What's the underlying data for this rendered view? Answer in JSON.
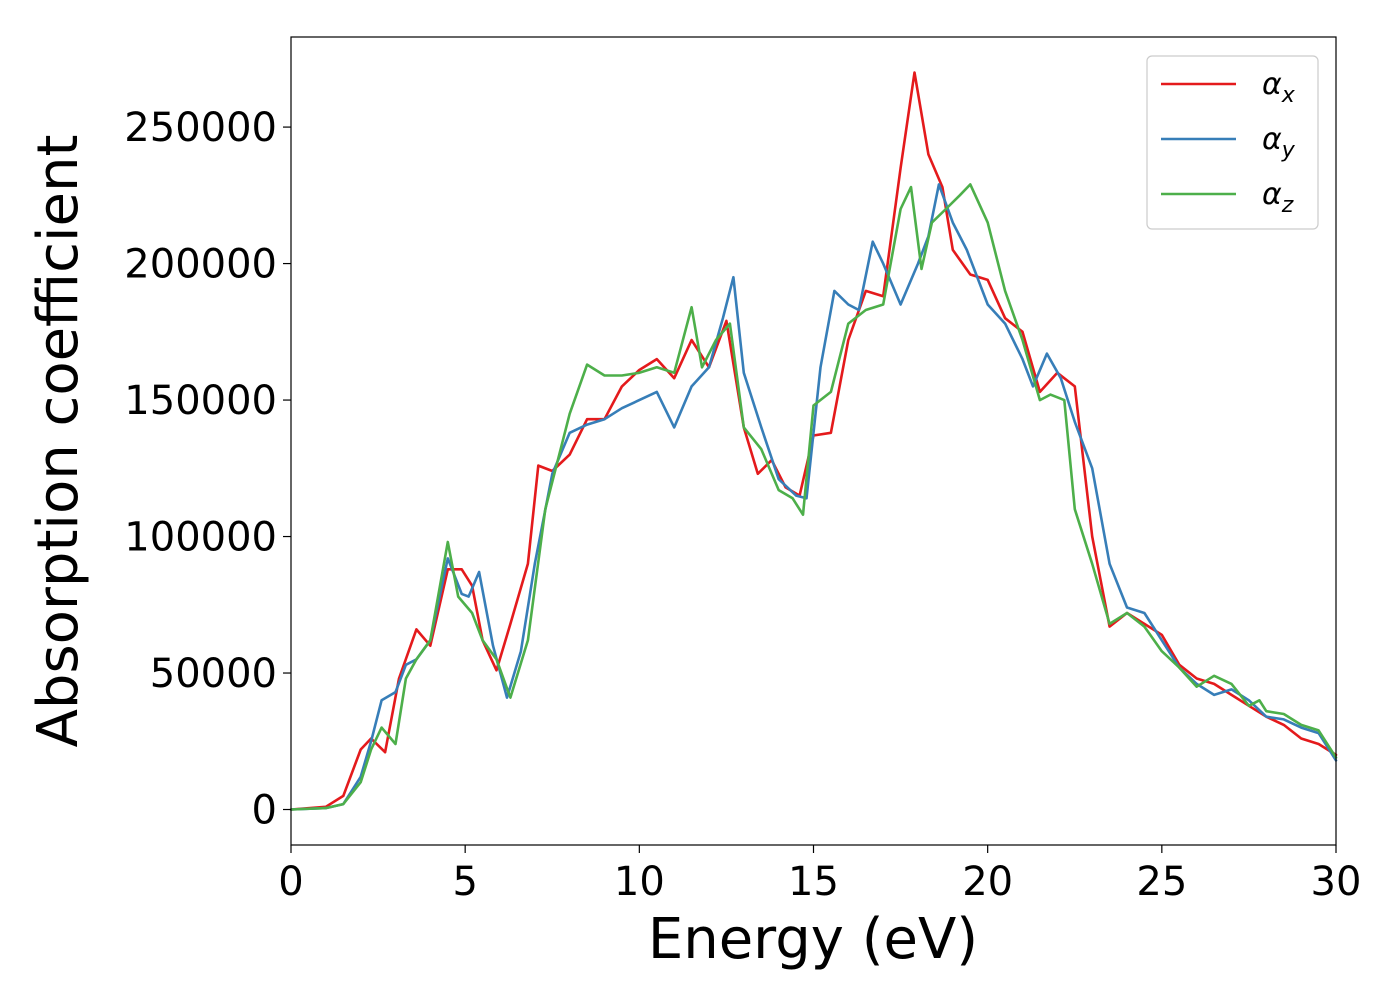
{
  "chart_data": {
    "type": "line",
    "xlabel": "Energy (eV)",
    "ylabel": "Absorption coefficient",
    "xlim": [
      0,
      30
    ],
    "ylim": [
      -13000,
      283000
    ],
    "xticks": [
      0,
      5,
      10,
      15,
      20,
      25,
      30
    ],
    "yticks": [
      0,
      50000,
      100000,
      150000,
      200000,
      250000
    ],
    "grid": false,
    "legend_position": "top-right",
    "series": [
      {
        "name": "α",
        "subscript": "x",
        "color": "#e41a1c",
        "x": [
          0,
          1,
          1.5,
          2,
          2.3,
          2.7,
          3.1,
          3.6,
          4,
          4.5,
          4.9,
          5.2,
          5.5,
          5.9,
          6.3,
          6.8,
          7.1,
          7.5,
          8,
          8.5,
          9,
          9.5,
          10,
          10.5,
          11,
          11.5,
          12,
          12.5,
          13,
          13.4,
          13.8,
          14.2,
          14.6,
          15,
          15.5,
          16,
          16.5,
          17,
          17.5,
          17.9,
          18.3,
          18.7,
          19,
          19.5,
          20,
          20.5,
          21,
          21.5,
          22,
          22.5,
          23,
          23.5,
          24,
          24.5,
          25,
          25.5,
          26,
          26.5,
          27,
          27.5,
          28,
          28.5,
          29,
          29.5,
          30
        ],
        "y": [
          0,
          1000,
          5000,
          22000,
          26000,
          21000,
          48000,
          66000,
          60000,
          88000,
          88000,
          82000,
          62000,
          51000,
          68000,
          90000,
          126000,
          124000,
          130000,
          143000,
          143000,
          155000,
          161000,
          165000,
          158000,
          172000,
          162000,
          179000,
          140000,
          123000,
          128000,
          118000,
          115000,
          137000,
          138000,
          172000,
          190000,
          188000,
          235000,
          270000,
          240000,
          228000,
          205000,
          196000,
          194000,
          180000,
          175000,
          153000,
          160000,
          155000,
          100000,
          67000,
          72000,
          68000,
          64000,
          53000,
          48000,
          46000,
          42000,
          38000,
          34000,
          31000,
          26000,
          24000,
          20000
        ]
      },
      {
        "name": "α",
        "subscript": "y",
        "color": "#377eb8",
        "x": [
          0,
          1,
          1.5,
          2,
          2.3,
          2.6,
          3,
          3.3,
          3.6,
          4,
          4.5,
          4.9,
          5.1,
          5.4,
          5.8,
          6.2,
          6.6,
          7,
          7.5,
          8,
          8.5,
          9,
          9.5,
          10,
          10.5,
          11,
          11.5,
          12,
          12.4,
          12.7,
          13,
          13.5,
          14,
          14.5,
          14.8,
          15.2,
          15.6,
          16,
          16.3,
          16.7,
          17,
          17.5,
          18,
          18.3,
          18.6,
          19,
          19.4,
          20,
          20.5,
          21,
          21.3,
          21.7,
          22.1,
          22.5,
          23,
          23.5,
          24,
          24.5,
          25,
          25.5,
          26,
          26.5,
          27,
          27.5,
          28,
          28.5,
          29,
          29.5,
          30
        ],
        "y": [
          0,
          500,
          2000,
          12000,
          25000,
          40000,
          43000,
          53000,
          55000,
          62000,
          92000,
          79000,
          78000,
          87000,
          60000,
          41000,
          58000,
          90000,
          123000,
          138000,
          141000,
          143000,
          147000,
          150000,
          153000,
          140000,
          155000,
          162000,
          180000,
          195000,
          160000,
          140000,
          121000,
          115000,
          114000,
          162000,
          190000,
          185000,
          183000,
          208000,
          200000,
          185000,
          200000,
          210000,
          229000,
          215000,
          205000,
          185000,
          178000,
          165000,
          155000,
          167000,
          158000,
          142000,
          125000,
          90000,
          74000,
          72000,
          62000,
          52000,
          46000,
          42000,
          44000,
          40000,
          34000,
          33000,
          30000,
          28000,
          18000
        ]
      },
      {
        "name": "α",
        "subscript": "z",
        "color": "#4daf4a",
        "x": [
          0,
          1,
          1.5,
          2,
          2.3,
          2.6,
          3,
          3.3,
          3.6,
          4,
          4.5,
          4.8,
          5.2,
          5.5,
          5.9,
          6.3,
          6.8,
          7.3,
          8,
          8.5,
          9,
          9.5,
          10,
          10.5,
          11,
          11.5,
          11.8,
          12.2,
          12.6,
          13,
          13.5,
          14,
          14.4,
          14.7,
          15,
          15.5,
          16,
          16.5,
          17,
          17.5,
          17.8,
          18.1,
          18.4,
          18.8,
          19.2,
          19.5,
          20,
          20.5,
          21,
          21.5,
          21.8,
          22.2,
          22.5,
          23,
          23.5,
          24,
          24.5,
          25,
          25.5,
          26,
          26.5,
          27,
          27.5,
          27.8,
          28,
          28.5,
          29,
          29.5,
          30
        ],
        "y": [
          0,
          500,
          2000,
          10000,
          22000,
          30000,
          24000,
          48000,
          55000,
          62000,
          98000,
          78000,
          72000,
          62000,
          55000,
          41000,
          62000,
          110000,
          145000,
          163000,
          159000,
          159000,
          160000,
          162000,
          160000,
          184000,
          162000,
          172000,
          178000,
          140000,
          132000,
          117000,
          114000,
          108000,
          148000,
          153000,
          178000,
          183000,
          185000,
          220000,
          228000,
          198000,
          215000,
          220000,
          225000,
          229000,
          215000,
          190000,
          172000,
          150000,
          152000,
          150000,
          110000,
          90000,
          68000,
          72000,
          67000,
          58000,
          52000,
          45000,
          49000,
          46000,
          38000,
          40000,
          36000,
          35000,
          31000,
          29000,
          19000
        ]
      }
    ]
  }
}
